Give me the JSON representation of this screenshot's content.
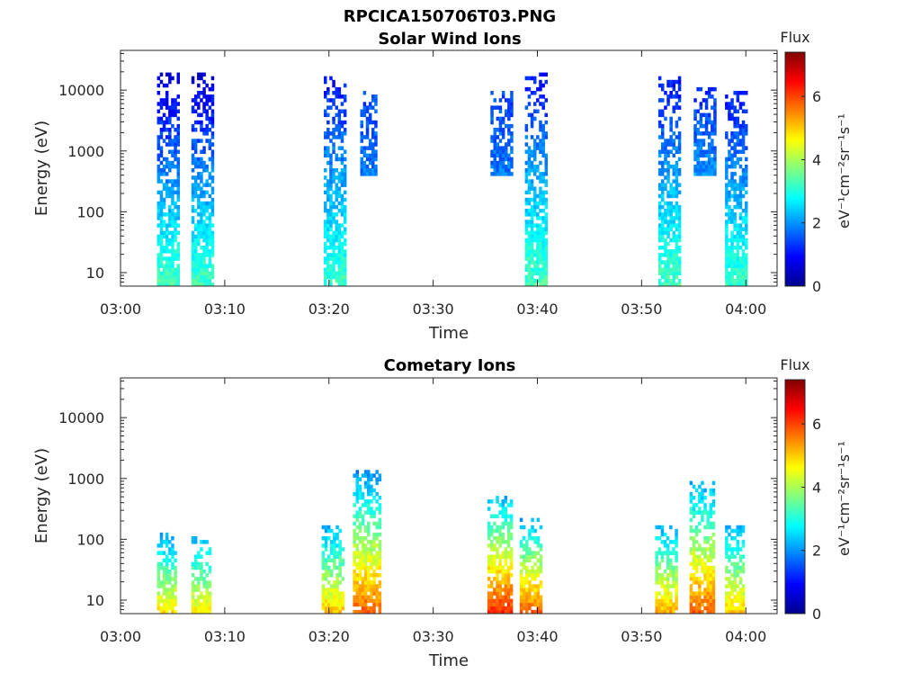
{
  "figure_title": "RPCICA150706T03.PNG",
  "chart_data": [
    {
      "type": "heatmap",
      "title": "Solar Wind Ions",
      "xlabel": "Time",
      "ylabel": "Energy (eV)",
      "y_scale": "log",
      "x_range": [
        "03:00",
        "04:03"
      ],
      "y_range": [
        6,
        45000
      ],
      "x_ticks": [
        "03:00",
        "03:10",
        "03:20",
        "03:30",
        "03:40",
        "03:50",
        "04:00"
      ],
      "y_ticks": [
        "10",
        "100",
        "1000",
        "10000"
      ],
      "colorbar": {
        "label": "Flux",
        "units": "eV⁻¹cm⁻²sr⁻¹s⁻¹",
        "range": [
          0,
          7.4
        ],
        "ticks": [
          "0",
          "2",
          "4",
          "6"
        ],
        "colormap": "jet"
      },
      "bursts": [
        {
          "t_start": "03:03.5",
          "t_end": "03:05.5",
          "e_low": 6,
          "e_high": 17000,
          "flux_low_energy": 3.3,
          "flux_high_energy": 0.6
        },
        {
          "t_start": "03:06.8",
          "t_end": "03:08.8",
          "e_low": 6,
          "e_high": 17000,
          "flux_low_energy": 3.3,
          "flux_high_energy": 0.6
        },
        {
          "t_start": "03:19.5",
          "t_end": "03:21.5",
          "e_low": 6,
          "e_high": 16000,
          "flux_low_energy": 3.2,
          "flux_high_energy": 1.0
        },
        {
          "t_start": "03:38.8",
          "t_end": "03:40.8",
          "e_low": 6,
          "e_high": 18000,
          "flux_low_energy": 3.3,
          "flux_high_energy": 1.0
        },
        {
          "t_start": "03:51.6",
          "t_end": "03:53.6",
          "e_low": 6,
          "e_high": 15000,
          "flux_low_energy": 3.3,
          "flux_high_energy": 1.0
        },
        {
          "t_start": "03:58.0",
          "t_end": "04:00.0",
          "e_low": 6,
          "e_high": 10000,
          "flux_low_energy": 3.2,
          "flux_high_energy": 1.0
        },
        {
          "t_start": "03:55.0",
          "t_end": "03:57.0",
          "e_low": 400,
          "e_high": 10000,
          "flux_low_energy": 2.0,
          "flux_high_energy": 1.2
        },
        {
          "t_start": "03:23.0",
          "t_end": "03:24.5",
          "e_low": 400,
          "e_high": 9000,
          "flux_low_energy": 1.8,
          "flux_high_energy": 1.4
        },
        {
          "t_start": "03:35.5",
          "t_end": "03:37.5",
          "e_low": 400,
          "e_high": 9000,
          "flux_low_energy": 1.8,
          "flux_high_energy": 1.4
        }
      ]
    },
    {
      "type": "heatmap",
      "title": "Cometary Ions",
      "xlabel": "Time",
      "ylabel": "Energy (eV)",
      "y_scale": "log",
      "x_range": [
        "03:00",
        "04:03"
      ],
      "y_range": [
        6,
        45000
      ],
      "x_ticks": [
        "03:00",
        "03:10",
        "03:20",
        "03:30",
        "03:40",
        "03:50",
        "04:00"
      ],
      "y_ticks": [
        "10",
        "100",
        "1000",
        "10000"
      ],
      "colorbar": {
        "label": "Flux",
        "units": "eV⁻¹cm⁻²sr⁻¹s⁻¹",
        "range": [
          0,
          7.4
        ],
        "ticks": [
          "0",
          "2",
          "4",
          "6"
        ],
        "colormap": "jet"
      },
      "bursts": [
        {
          "t_start": "03:03.5",
          "t_end": "03:05.2",
          "e_low": 6,
          "e_high": 120,
          "flux_low_energy": 4.8,
          "flux_high_energy": 2.0
        },
        {
          "t_start": "03:06.8",
          "t_end": "03:08.5",
          "e_low": 6,
          "e_high": 100,
          "flux_low_energy": 4.7,
          "flux_high_energy": 2.2
        },
        {
          "t_start": "03:19.3",
          "t_end": "03:21.3",
          "e_low": 6,
          "e_high": 150,
          "flux_low_energy": 5.0,
          "flux_high_energy": 2.2
        },
        {
          "t_start": "03:22.3",
          "t_end": "03:24.8",
          "e_low": 6,
          "e_high": 1200,
          "flux_low_energy": 5.8,
          "flux_high_energy": 2.0
        },
        {
          "t_start": "03:35.2",
          "t_end": "03:37.5",
          "e_low": 6,
          "e_high": 500,
          "flux_low_energy": 6.2,
          "flux_high_energy": 2.2
        },
        {
          "t_start": "03:38.3",
          "t_end": "03:40.2",
          "e_low": 6,
          "e_high": 200,
          "flux_low_energy": 5.8,
          "flux_high_energy": 2.2
        },
        {
          "t_start": "03:51.3",
          "t_end": "03:53.3",
          "e_low": 6,
          "e_high": 150,
          "flux_low_energy": 5.2,
          "flux_high_energy": 2.2
        },
        {
          "t_start": "03:54.6",
          "t_end": "03:57.0",
          "e_low": 6,
          "e_high": 900,
          "flux_low_energy": 5.8,
          "flux_high_energy": 2.0
        },
        {
          "t_start": "03:58.0",
          "t_end": "03:59.8",
          "e_low": 6,
          "e_high": 150,
          "flux_low_energy": 5.0,
          "flux_high_energy": 2.2
        }
      ]
    }
  ]
}
